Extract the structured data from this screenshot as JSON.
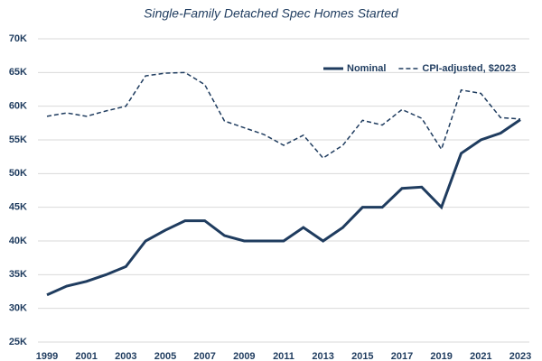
{
  "chart_data": {
    "type": "line",
    "subtitle": "Single-Family Detached Spec Homes Started",
    "x": [
      1999,
      2000,
      2001,
      2002,
      2003,
      2004,
      2005,
      2006,
      2007,
      2008,
      2009,
      2010,
      2011,
      2012,
      2013,
      2014,
      2015,
      2016,
      2017,
      2018,
      2019,
      2020,
      2021,
      2022,
      2023
    ],
    "series": [
      {
        "name": "Nominal",
        "color": "#1f3c5f",
        "dash": false,
        "values": [
          32000,
          33300,
          34000,
          35000,
          36200,
          40000,
          41600,
          43000,
          43000,
          40800,
          40000,
          40000,
          40000,
          42000,
          40000,
          42000,
          45000,
          45000,
          47800,
          48000,
          45000,
          53000,
          55000,
          56000,
          58000
        ]
      },
      {
        "name": "CPI-adjusted, $2023",
        "color": "#1f3c5f",
        "dash": true,
        "values": [
          58500,
          59000,
          58500,
          59300,
          60000,
          64500,
          64900,
          65000,
          63200,
          57800,
          56800,
          55800,
          54200,
          55700,
          52300,
          54200,
          57900,
          57200,
          59500,
          58200,
          53600,
          62400,
          61900,
          58300,
          58100
        ]
      }
    ],
    "xlim": [
      1999,
      2023
    ],
    "xticks": [
      1999,
      2001,
      2003,
      2005,
      2007,
      2009,
      2011,
      2013,
      2015,
      2017,
      2019,
      2021,
      2023
    ],
    "ylim": [
      25000,
      70000
    ],
    "yticks": [
      {
        "value": 25000,
        "label": "25K"
      },
      {
        "value": 30000,
        "label": "30K"
      },
      {
        "value": 35000,
        "label": "35K"
      },
      {
        "value": 40000,
        "label": "40K"
      },
      {
        "value": 45000,
        "label": "45K"
      },
      {
        "value": 50000,
        "label": "50K"
      },
      {
        "value": 55000,
        "label": "55K"
      },
      {
        "value": 60000,
        "label": "60K"
      },
      {
        "value": 65000,
        "label": "65K"
      },
      {
        "value": 70000,
        "label": "70K"
      }
    ],
    "grid": true,
    "legend": "top-right"
  }
}
